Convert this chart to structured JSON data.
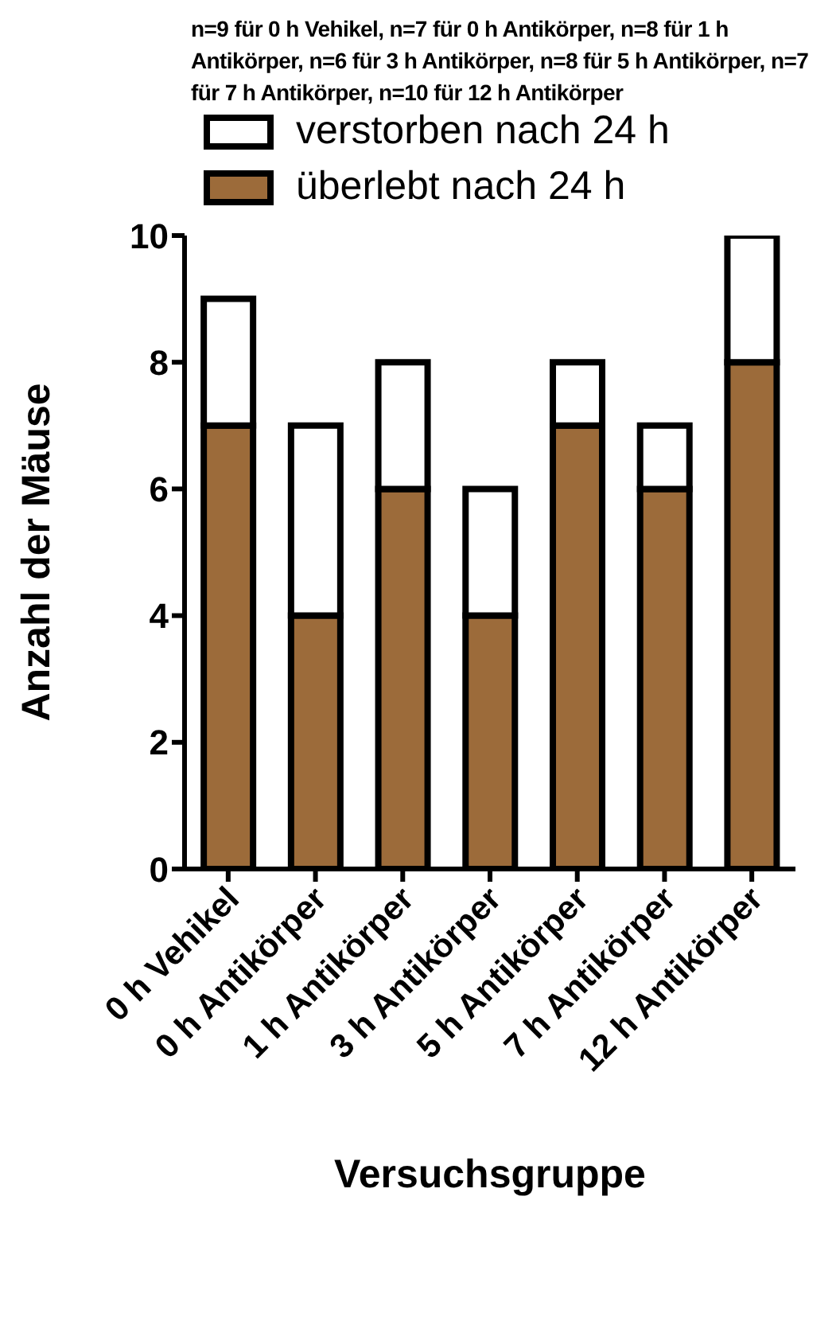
{
  "chart_data": {
    "type": "bar",
    "stacked": true,
    "xlabel": "Versuchsgruppe",
    "ylabel": "Anzahl der Mäuse",
    "annotations": [
      "n=9 für 0 h Vehikel, n=7 für 0 h Antikörper, n=8 für 1 h Antikörper, n=6 für 3 h Antikörper, n=8 für 5 h Antikörper, n=7 für 7 h Antikörper, n=10 für 12 h Antikörper"
    ],
    "categories": [
      "0 h Vehikel",
      "0 h Antikörper",
      "1 h Antikörper",
      "3 h Antikörper",
      "5 h Antikörper",
      "7 h Antikörper",
      "12 h Antikörper"
    ],
    "series": [
      {
        "name": "überlebt nach 24 h",
        "color": "#9c6b3a",
        "values": [
          7,
          4,
          6,
          4,
          7,
          6,
          8
        ]
      },
      {
        "name": "verstorben nach 24 h",
        "color": "#ffffff",
        "values": [
          2,
          3,
          2,
          2,
          1,
          1,
          2
        ]
      }
    ],
    "ylim": [
      0,
      10
    ],
    "yticks": [
      0,
      2,
      4,
      6,
      8,
      10
    ],
    "grid": false,
    "legend": "top"
  }
}
